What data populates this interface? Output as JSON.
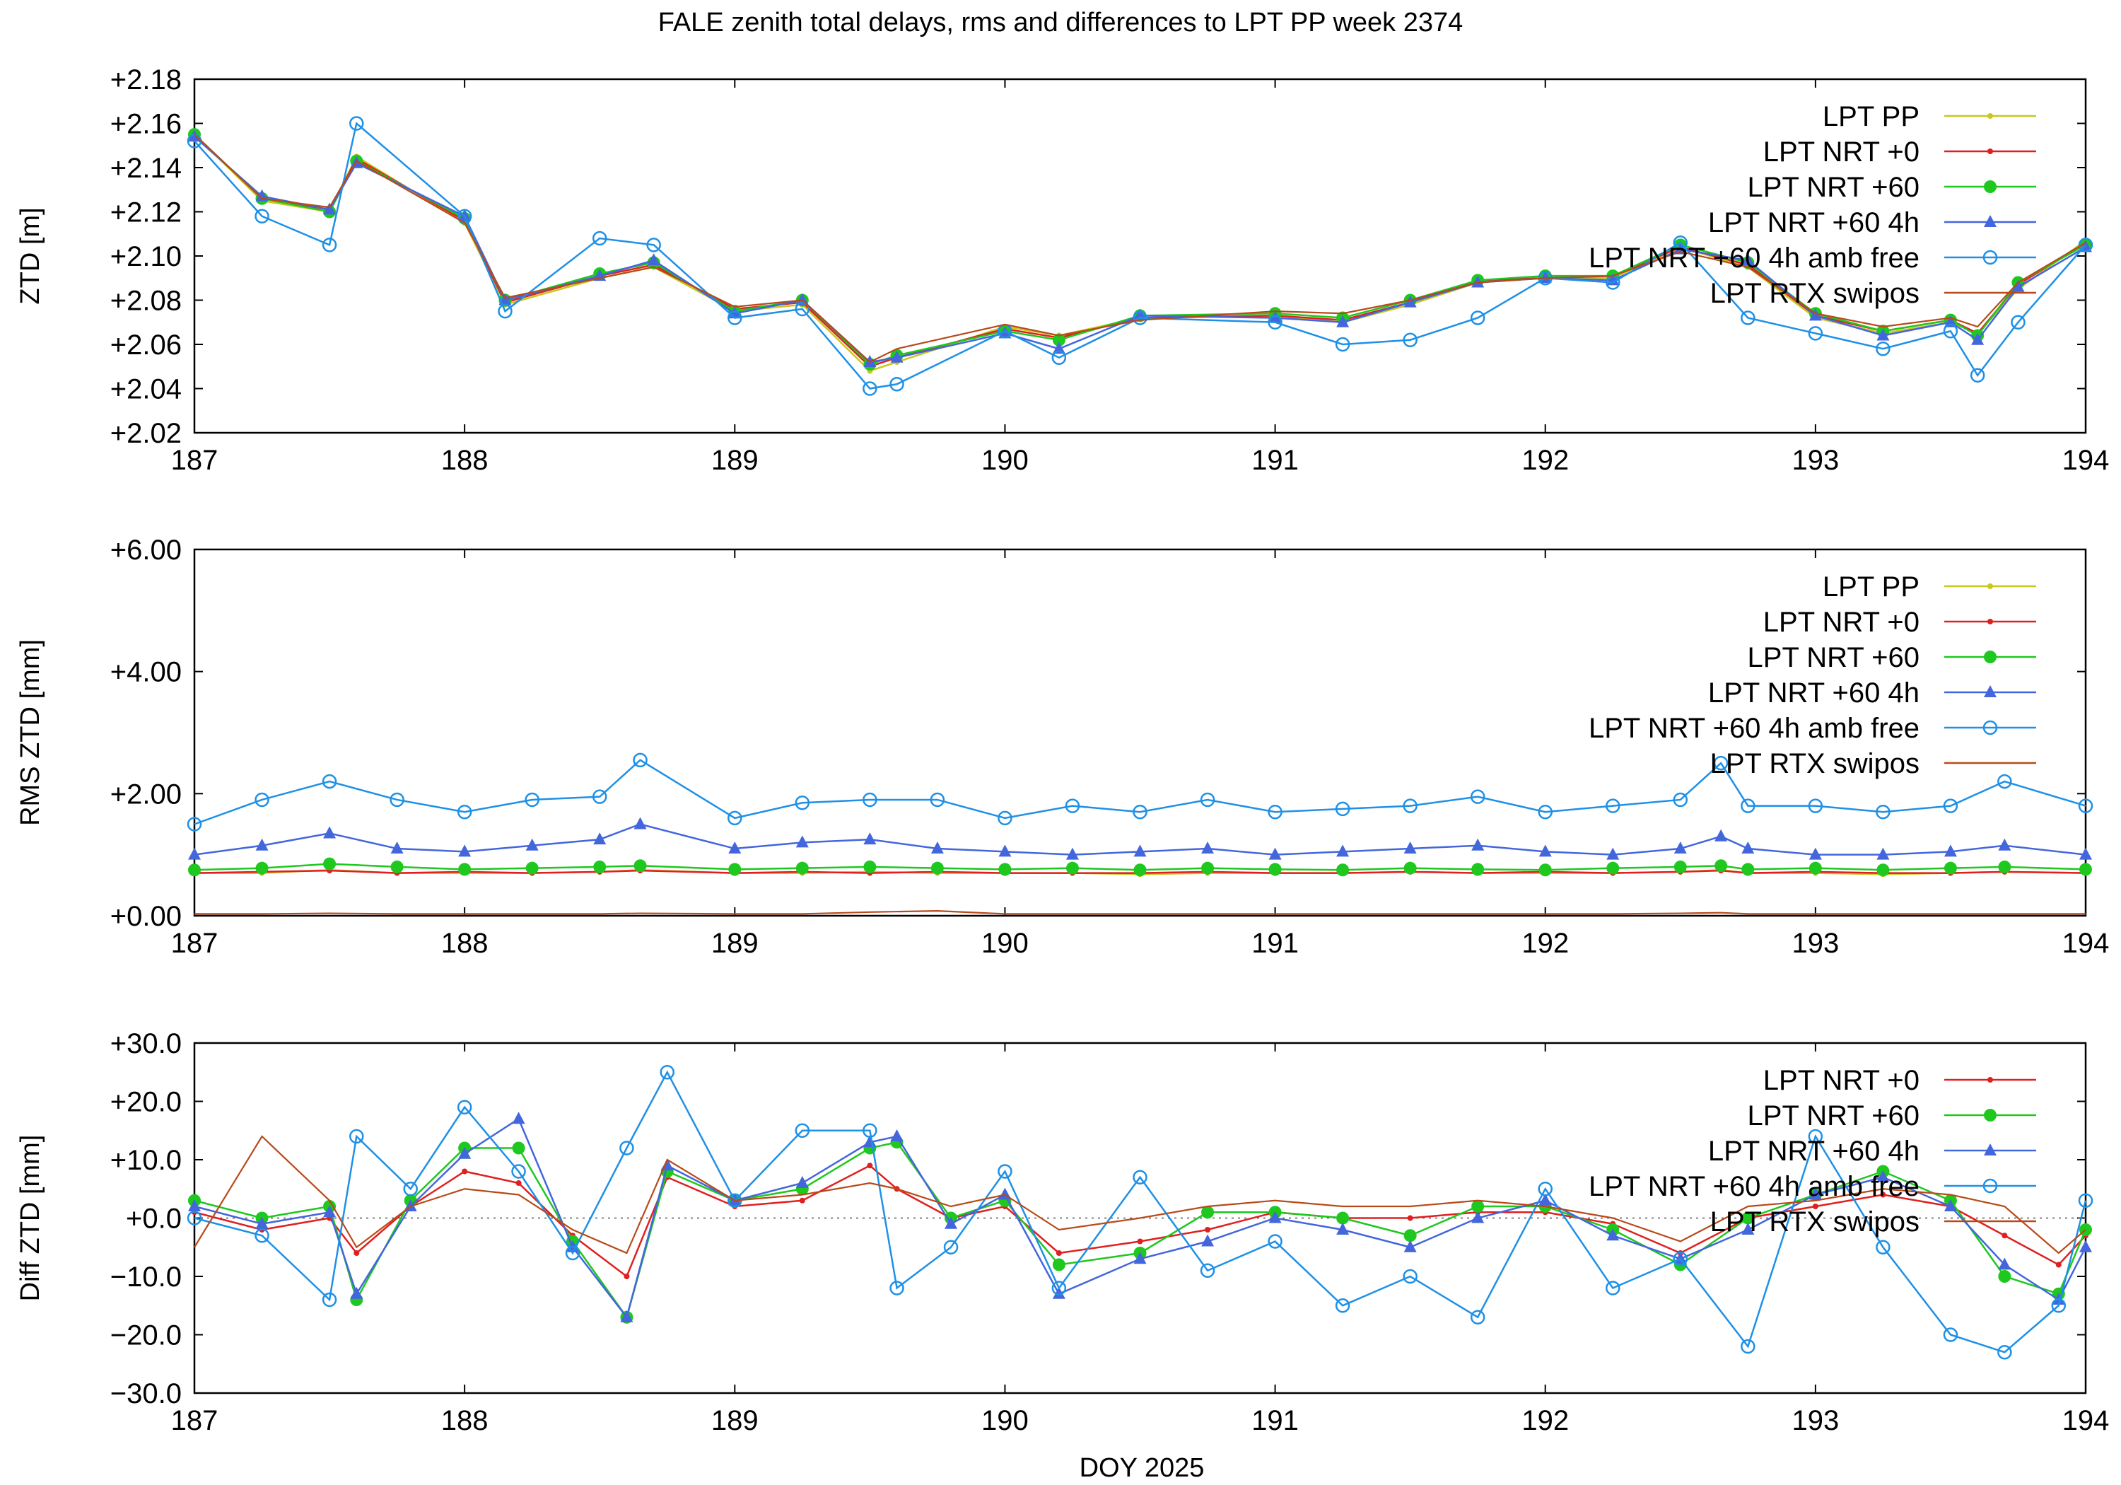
{
  "figure": {
    "title": "FALE zenith total delays, rms and differences to LPT PP week 2374",
    "xlabel": "DOY 2025"
  },
  "series_styles": [
    {
      "name": "LPT PP",
      "color": "#c8c81e",
      "marker": "dot"
    },
    {
      "name": "LPT NRT +0",
      "color": "#e02020",
      "marker": "dot"
    },
    {
      "name": "LPT NRT +60",
      "color": "#1ec81e",
      "marker": "circle-filled"
    },
    {
      "name": "LPT NRT +60 4h",
      "color": "#4466dd",
      "marker": "triangle"
    },
    {
      "name": "LPT NRT +60 4h amb free",
      "color": "#1e90e6",
      "marker": "circle-open"
    },
    {
      "name": "LPT RTX swipos",
      "color": "#b84a1a",
      "marker": "none"
    }
  ],
  "chart_data": [
    {
      "type": "line",
      "ylabel": "ZTD [m]",
      "xlim": [
        187,
        194
      ],
      "ylim": [
        2.02,
        2.18
      ],
      "x_ticks": [
        "187",
        "188",
        "189",
        "190",
        "191",
        "192",
        "193",
        "194"
      ],
      "y_ticks": [
        "+2.02",
        "+2.04",
        "+2.06",
        "+2.08",
        "+2.10",
        "+2.12",
        "+2.14",
        "+2.16",
        "+2.18"
      ],
      "legend_position": "top-right",
      "legend": [
        "LPT PP",
        "LPT NRT +0",
        "LPT NRT +60",
        "LPT NRT +60 4h",
        "LPT NRT +60 4h amb free",
        "LPT RTX swipos"
      ],
      "x": [
        187.0,
        187.25,
        187.5,
        187.6,
        188.0,
        188.15,
        188.5,
        188.7,
        189.0,
        189.25,
        189.5,
        189.6,
        190.0,
        190.2,
        190.5,
        191.0,
        191.25,
        191.5,
        191.75,
        192.0,
        192.25,
        192.5,
        192.75,
        193.0,
        193.25,
        193.5,
        193.6,
        193.75,
        194.0
      ],
      "series": [
        {
          "name": "LPT PP",
          "values": [
            2.155,
            2.125,
            2.12,
            2.145,
            2.115,
            2.078,
            2.09,
            2.095,
            2.075,
            2.078,
            2.048,
            2.052,
            2.068,
            2.064,
            2.072,
            2.073,
            2.07,
            2.078,
            2.088,
            2.09,
            2.09,
            2.104,
            2.095,
            2.072,
            2.065,
            2.07,
            2.065,
            2.085,
            2.107
          ]
        },
        {
          "name": "LPT NRT +0",
          "values": [
            2.155,
            2.126,
            2.121,
            2.144,
            2.116,
            2.079,
            2.091,
            2.096,
            2.076,
            2.079,
            2.05,
            2.054,
            2.067,
            2.063,
            2.072,
            2.073,
            2.071,
            2.079,
            2.089,
            2.09,
            2.091,
            2.104,
            2.096,
            2.073,
            2.066,
            2.071,
            2.065,
            2.087,
            2.106
          ]
        },
        {
          "name": "LPT NRT +60",
          "values": [
            2.155,
            2.126,
            2.12,
            2.143,
            2.117,
            2.08,
            2.092,
            2.097,
            2.075,
            2.08,
            2.051,
            2.055,
            2.066,
            2.062,
            2.073,
            2.074,
            2.072,
            2.08,
            2.089,
            2.091,
            2.091,
            2.105,
            2.097,
            2.074,
            2.066,
            2.071,
            2.064,
            2.088,
            2.105
          ]
        },
        {
          "name": "LPT NRT +60 4h",
          "values": [
            2.154,
            2.127,
            2.121,
            2.142,
            2.118,
            2.08,
            2.091,
            2.098,
            2.074,
            2.08,
            2.052,
            2.054,
            2.065,
            2.058,
            2.073,
            2.072,
            2.07,
            2.079,
            2.088,
            2.09,
            2.089,
            2.103,
            2.098,
            2.073,
            2.064,
            2.07,
            2.062,
            2.086,
            2.104
          ]
        },
        {
          "name": "LPT NRT +60 4h amb free",
          "values": [
            2.152,
            2.118,
            2.105,
            2.16,
            2.118,
            2.075,
            2.108,
            2.105,
            2.072,
            2.076,
            2.04,
            2.042,
            2.066,
            2.054,
            2.072,
            2.07,
            2.06,
            2.062,
            2.072,
            2.09,
            2.088,
            2.106,
            2.072,
            2.065,
            2.058,
            2.066,
            2.046,
            2.07,
            2.105
          ]
        },
        {
          "name": "LPT RTX swipos",
          "values": [
            2.155,
            2.126,
            2.122,
            2.143,
            2.115,
            2.081,
            2.09,
            2.095,
            2.077,
            2.08,
            2.052,
            2.058,
            2.069,
            2.064,
            2.071,
            2.075,
            2.074,
            2.08,
            2.088,
            2.09,
            2.091,
            2.102,
            2.095,
            2.074,
            2.068,
            2.072,
            2.068,
            2.088,
            2.106
          ]
        }
      ]
    },
    {
      "type": "line",
      "ylabel": "RMS ZTD [mm]",
      "xlim": [
        187,
        194
      ],
      "ylim": [
        0,
        6
      ],
      "x_ticks": [
        "187",
        "188",
        "189",
        "190",
        "191",
        "192",
        "193",
        "194"
      ],
      "y_ticks": [
        "+0.00",
        "+2.00",
        "+4.00",
        "+6.00"
      ],
      "legend_position": "top-right",
      "legend": [
        "LPT PP",
        "LPT NRT +0",
        "LPT NRT +60",
        "LPT NRT +60 4h",
        "LPT NRT +60 4h amb free",
        "LPT RTX swipos"
      ],
      "x": [
        187.0,
        187.25,
        187.5,
        187.75,
        188.0,
        188.25,
        188.5,
        188.65,
        189.0,
        189.25,
        189.5,
        189.75,
        190.0,
        190.25,
        190.5,
        190.75,
        191.0,
        191.25,
        191.5,
        191.75,
        192.0,
        192.25,
        192.5,
        192.65,
        192.75,
        193.0,
        193.25,
        193.5,
        193.7,
        194.0
      ],
      "series": [
        {
          "name": "LPT PP",
          "values": [
            0.7,
            0.7,
            0.75,
            0.7,
            0.7,
            0.7,
            0.72,
            0.75,
            0.7,
            0.7,
            0.72,
            0.7,
            0.7,
            0.7,
            0.68,
            0.7,
            0.7,
            0.7,
            0.72,
            0.7,
            0.7,
            0.7,
            0.72,
            0.75,
            0.7,
            0.7,
            0.68,
            0.7,
            0.72,
            0.7
          ]
        },
        {
          "name": "LPT NRT +0",
          "values": [
            0.7,
            0.72,
            0.74,
            0.7,
            0.72,
            0.7,
            0.72,
            0.74,
            0.7,
            0.72,
            0.7,
            0.72,
            0.7,
            0.7,
            0.7,
            0.72,
            0.7,
            0.7,
            0.72,
            0.7,
            0.72,
            0.7,
            0.72,
            0.74,
            0.7,
            0.72,
            0.7,
            0.7,
            0.72,
            0.7
          ]
        },
        {
          "name": "LPT NRT +60",
          "values": [
            0.75,
            0.78,
            0.85,
            0.8,
            0.76,
            0.78,
            0.8,
            0.82,
            0.76,
            0.78,
            0.8,
            0.78,
            0.76,
            0.78,
            0.75,
            0.78,
            0.76,
            0.75,
            0.78,
            0.76,
            0.75,
            0.78,
            0.8,
            0.82,
            0.76,
            0.78,
            0.75,
            0.78,
            0.8,
            0.76
          ]
        },
        {
          "name": "LPT NRT +60 4h",
          "values": [
            1.0,
            1.15,
            1.35,
            1.1,
            1.05,
            1.15,
            1.25,
            1.5,
            1.1,
            1.2,
            1.25,
            1.1,
            1.05,
            1.0,
            1.05,
            1.1,
            1.0,
            1.05,
            1.1,
            1.15,
            1.05,
            1.0,
            1.1,
            1.3,
            1.1,
            1.0,
            1.0,
            1.05,
            1.15,
            1.0
          ]
        },
        {
          "name": "LPT NRT +60 4h amb free",
          "values": [
            1.5,
            1.9,
            2.2,
            1.9,
            1.7,
            1.9,
            1.95,
            2.55,
            1.6,
            1.85,
            1.9,
            1.9,
            1.6,
            1.8,
            1.7,
            1.9,
            1.7,
            1.75,
            1.8,
            1.95,
            1.7,
            1.8,
            1.9,
            2.5,
            1.8,
            1.8,
            1.7,
            1.8,
            2.2,
            1.8
          ]
        },
        {
          "name": "LPT RTX swipos",
          "values": [
            0.03,
            0.03,
            0.04,
            0.03,
            0.03,
            0.03,
            0.03,
            0.04,
            0.03,
            0.03,
            0.06,
            0.08,
            0.03,
            0.03,
            0.03,
            0.03,
            0.03,
            0.03,
            0.03,
            0.03,
            0.03,
            0.03,
            0.04,
            0.05,
            0.03,
            0.03,
            0.03,
            0.03,
            0.03,
            0.03
          ]
        }
      ]
    },
    {
      "type": "line",
      "ylabel": "Diff ZTD [mm]",
      "xlim": [
        187,
        194
      ],
      "ylim": [
        -30,
        30
      ],
      "x_ticks": [
        "187",
        "188",
        "189",
        "190",
        "191",
        "192",
        "193",
        "194"
      ],
      "y_ticks": [
        "−30.0",
        "−20.0",
        "−10.0",
        "+0.0",
        "+10.0",
        "+20.0",
        "+30.0"
      ],
      "legend_position": "top-right",
      "legend": [
        "LPT NRT +0",
        "LPT NRT +60",
        "LPT NRT +60 4h",
        "LPT NRT +60 4h amb free",
        "LPT RTX swipos"
      ],
      "zero_line": true,
      "x": [
        187.0,
        187.25,
        187.5,
        187.6,
        187.8,
        188.0,
        188.2,
        188.4,
        188.6,
        188.75,
        189.0,
        189.25,
        189.5,
        189.6,
        189.8,
        190.0,
        190.2,
        190.5,
        190.75,
        191.0,
        191.25,
        191.5,
        191.75,
        192.0,
        192.25,
        192.5,
        192.75,
        193.0,
        193.25,
        193.5,
        193.7,
        193.9,
        194.0
      ],
      "series": [
        {
          "name": "LPT NRT +0",
          "values": [
            1,
            -2,
            0,
            -6,
            2,
            8,
            6,
            -3,
            -10,
            7,
            2,
            3,
            9,
            5,
            0,
            2,
            -6,
            -4,
            -2,
            1,
            0,
            0,
            1,
            1,
            -1,
            -6,
            0,
            2,
            4,
            2,
            -3,
            -8,
            -3
          ]
        },
        {
          "name": "LPT NRT +60",
          "values": [
            3,
            0,
            2,
            -14,
            3,
            12,
            12,
            -4,
            -17,
            8,
            3,
            5,
            12,
            13,
            0,
            3,
            -8,
            -6,
            1,
            1,
            0,
            -3,
            2,
            2,
            -2,
            -8,
            0,
            4,
            8,
            3,
            -10,
            -13,
            -2
          ]
        },
        {
          "name": "LPT NRT +60 4h",
          "values": [
            2,
            -1,
            1,
            -13,
            2,
            11,
            17,
            -5,
            -17,
            9,
            3,
            6,
            13,
            14,
            -1,
            4,
            -13,
            -7,
            -4,
            0,
            -2,
            -5,
            0,
            3,
            -3,
            -7,
            -2,
            4,
            7,
            2,
            -8,
            -14,
            -5
          ]
        },
        {
          "name": "LPT NRT +60 4h amb free",
          "values": [
            0,
            -3,
            -14,
            14,
            5,
            19,
            8,
            -6,
            12,
            25,
            3,
            15,
            15,
            -12,
            -5,
            8,
            -12,
            7,
            -9,
            -4,
            -15,
            -10,
            -17,
            5,
            -12,
            -7,
            -22,
            14,
            -5,
            -20,
            -23,
            -15,
            3
          ]
        },
        {
          "name": "LPT RTX swipos",
          "values": [
            -5,
            14,
            3,
            -5,
            2,
            5,
            4,
            -2,
            -6,
            10,
            3,
            4,
            6,
            5,
            2,
            4,
            -2,
            0,
            2,
            3,
            2,
            2,
            3,
            2,
            0,
            -4,
            2,
            3,
            5,
            4,
            2,
            -6,
            -2
          ]
        }
      ]
    }
  ]
}
